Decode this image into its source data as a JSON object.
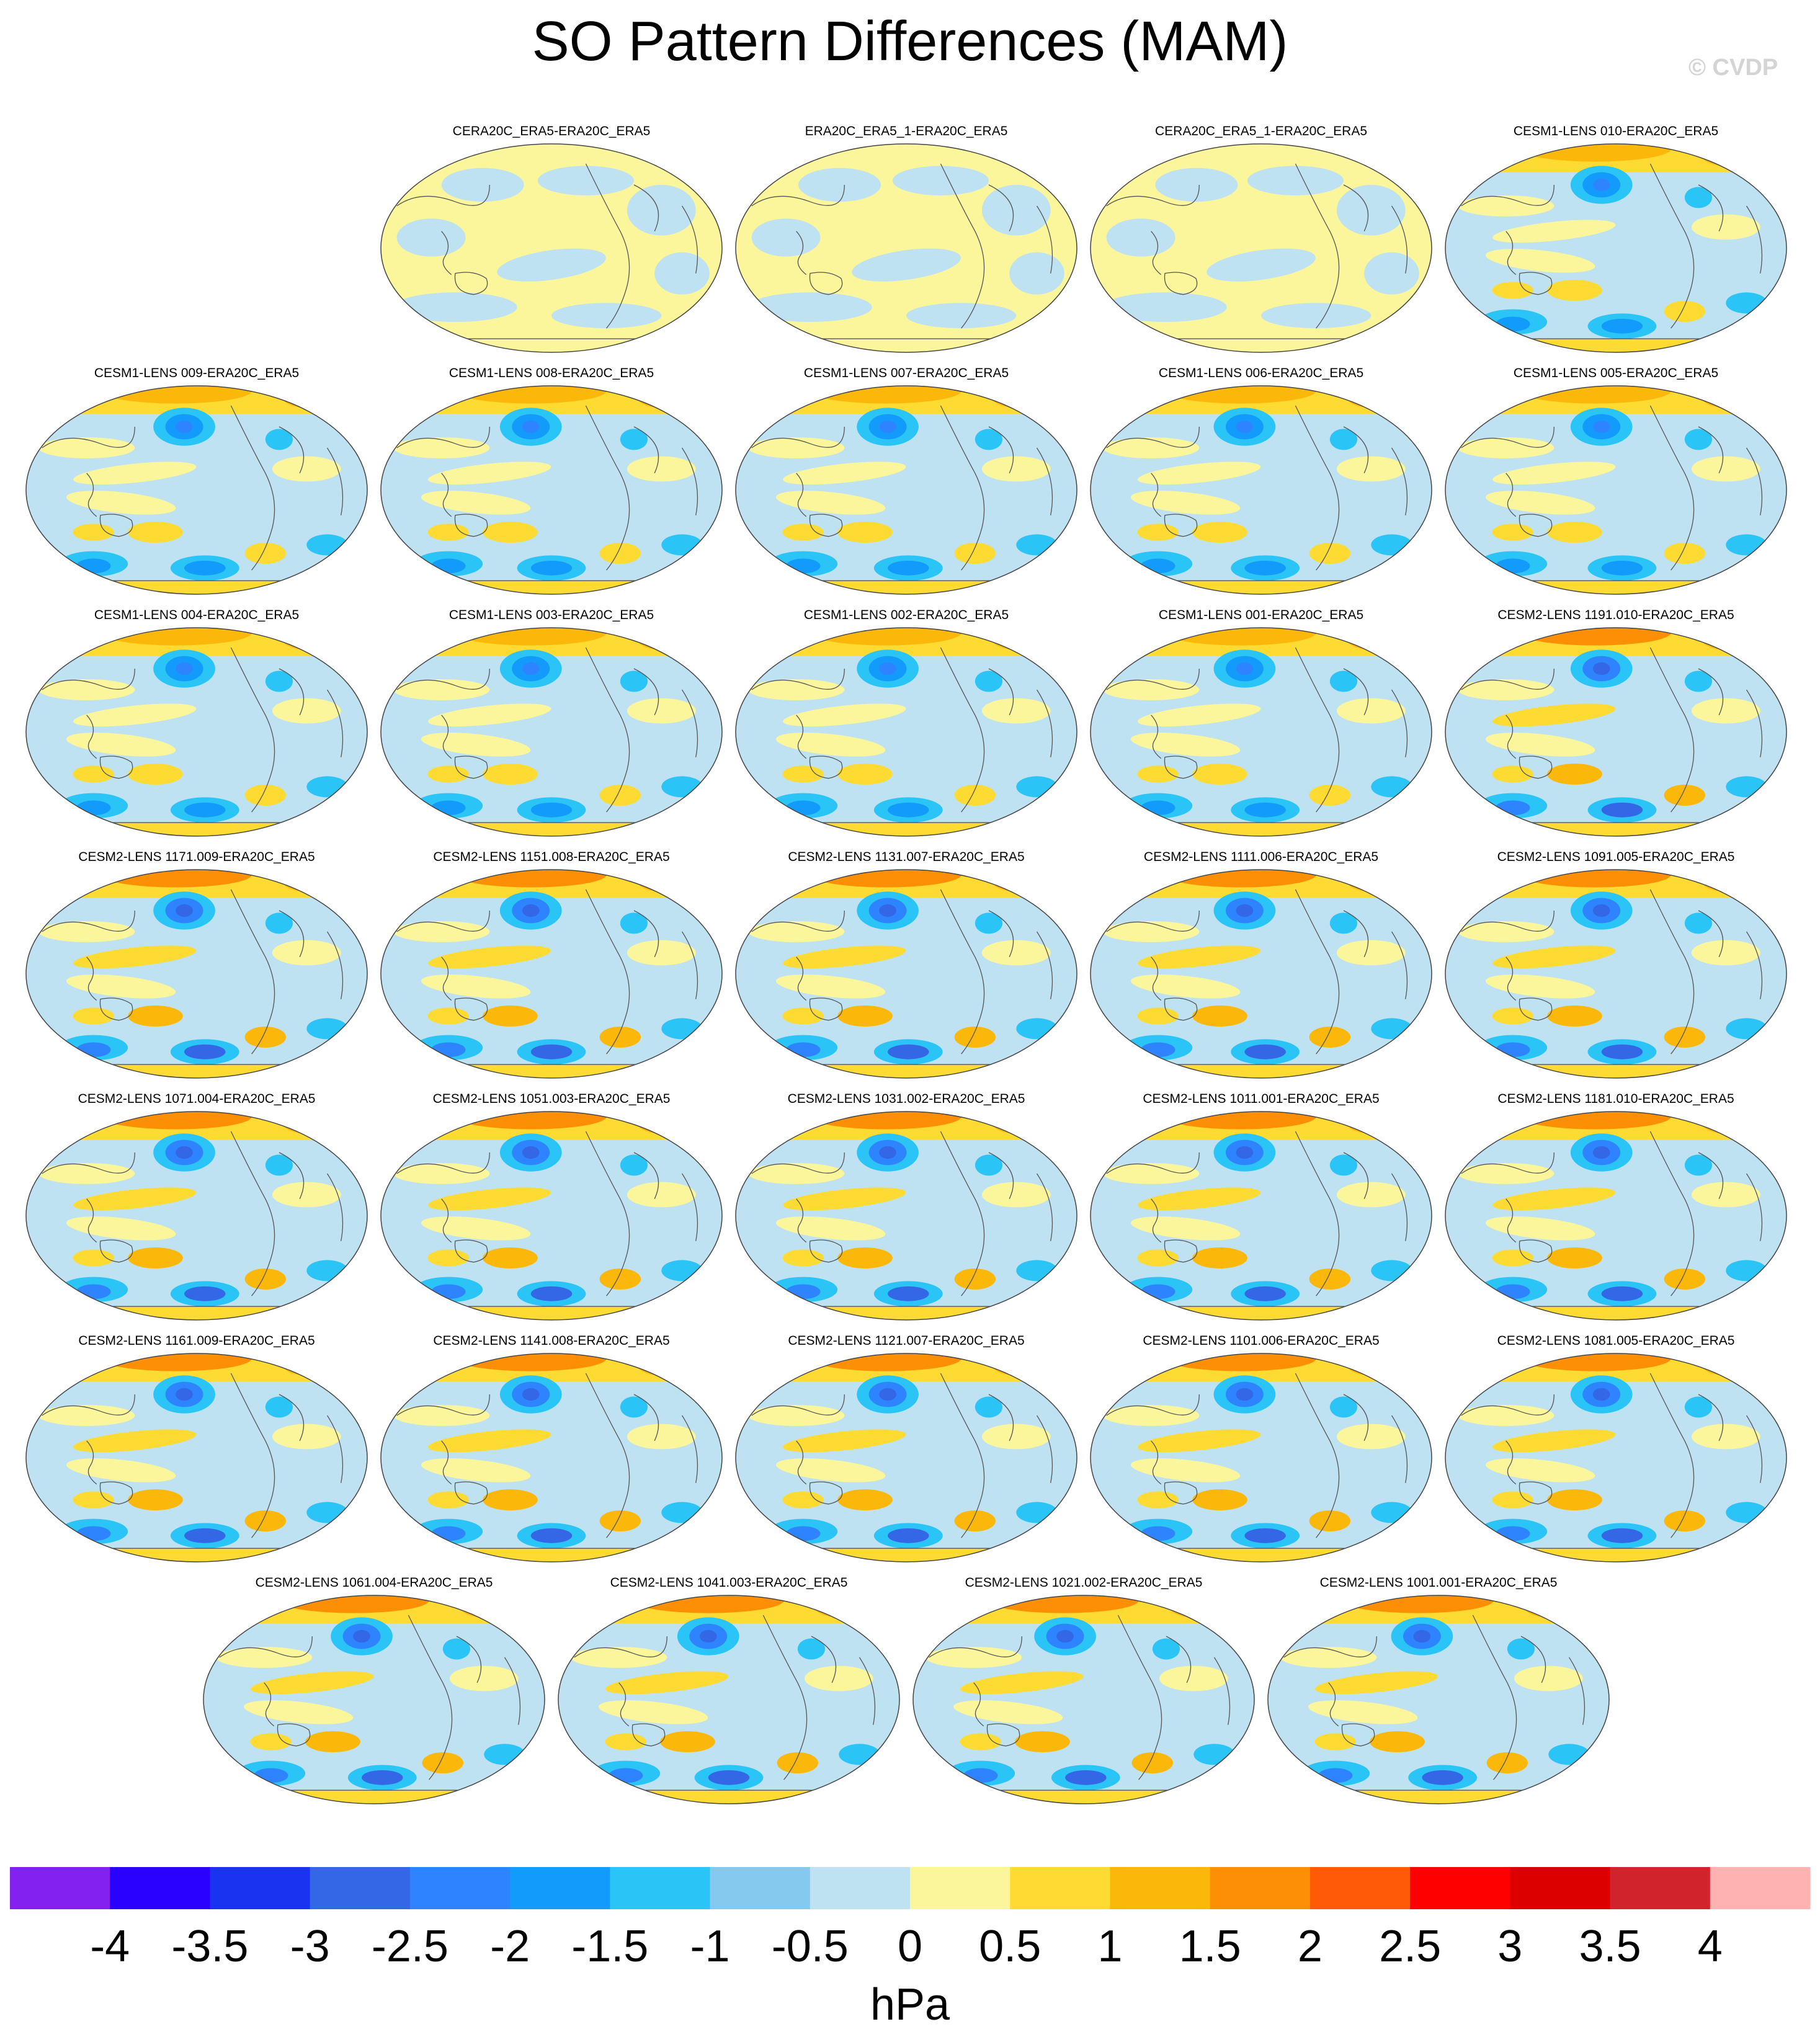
{
  "title": "SO Pattern Differences (MAM)",
  "watermark": "© CVDP",
  "chart_data": {
    "type": "heatmap",
    "title": "SO Pattern Differences (MAM)",
    "projection": "global robinson map, Pacific-centered",
    "variable_units": "hPa",
    "colorbar": {
      "label": "hPa",
      "levels": [
        "-4",
        "-3.5",
        "-3",
        "-2.5",
        "-2",
        "-1.5",
        "-1",
        "-0.5",
        "0",
        "0.5",
        "1",
        "1.5",
        "2",
        "2.5",
        "3",
        "3.5",
        "4"
      ],
      "colors": [
        "#8221f0",
        "#2a00ff",
        "#1a33f0",
        "#3367e6",
        "#2e84ff",
        "#129bfa",
        "#2bc4f7",
        "#86c9ee",
        "#bfe2f2",
        "#fbf59b",
        "#fddb32",
        "#fbb80a",
        "#fd8f06",
        "#ff5a08",
        "#ff0000",
        "#dd0000",
        "#d1232b",
        "#ffb2b2"
      ]
    },
    "panels": [
      {
        "label": "CERA20C_ERA5-ERA20C_ERA5",
        "style": "weak"
      },
      {
        "label": "ERA20C_ERA5_1-ERA20C_ERA5",
        "style": "weak"
      },
      {
        "label": "CERA20C_ERA5_1-ERA20C_ERA5",
        "style": "weak"
      },
      {
        "label": "CESM1-LENS 010-ERA20C_ERA5",
        "style": "cesm1"
      },
      {
        "label": "CESM1-LENS 009-ERA20C_ERA5",
        "style": "cesm1"
      },
      {
        "label": "CESM1-LENS 008-ERA20C_ERA5",
        "style": "cesm1"
      },
      {
        "label": "CESM1-LENS 007-ERA20C_ERA5",
        "style": "cesm1"
      },
      {
        "label": "CESM1-LENS 006-ERA20C_ERA5",
        "style": "cesm1"
      },
      {
        "label": "CESM1-LENS 005-ERA20C_ERA5",
        "style": "cesm1"
      },
      {
        "label": "CESM1-LENS 004-ERA20C_ERA5",
        "style": "cesm1"
      },
      {
        "label": "CESM1-LENS 003-ERA20C_ERA5",
        "style": "cesm1"
      },
      {
        "label": "CESM1-LENS 002-ERA20C_ERA5",
        "style": "cesm1"
      },
      {
        "label": "CESM1-LENS 001-ERA20C_ERA5",
        "style": "cesm1"
      },
      {
        "label": "CESM2-LENS 1191.010-ERA20C_ERA5",
        "style": "cesm2"
      },
      {
        "label": "CESM2-LENS 1171.009-ERA20C_ERA5",
        "style": "cesm2"
      },
      {
        "label": "CESM2-LENS 1151.008-ERA20C_ERA5",
        "style": "cesm2"
      },
      {
        "label": "CESM2-LENS 1131.007-ERA20C_ERA5",
        "style": "cesm2"
      },
      {
        "label": "CESM2-LENS 1111.006-ERA20C_ERA5",
        "style": "cesm2"
      },
      {
        "label": "CESM2-LENS 1091.005-ERA20C_ERA5",
        "style": "cesm2"
      },
      {
        "label": "CESM2-LENS 1071.004-ERA20C_ERA5",
        "style": "cesm2"
      },
      {
        "label": "CESM2-LENS 1051.003-ERA20C_ERA5",
        "style": "cesm2"
      },
      {
        "label": "CESM2-LENS 1031.002-ERA20C_ERA5",
        "style": "cesm2"
      },
      {
        "label": "CESM2-LENS 1011.001-ERA20C_ERA5",
        "style": "cesm2"
      },
      {
        "label": "CESM2-LENS 1181.010-ERA20C_ERA5",
        "style": "cesm2"
      },
      {
        "label": "CESM2-LENS 1161.009-ERA20C_ERA5",
        "style": "cesm2"
      },
      {
        "label": "CESM2-LENS 1141.008-ERA20C_ERA5",
        "style": "cesm2"
      },
      {
        "label": "CESM2-LENS 1121.007-ERA20C_ERA5",
        "style": "cesm2"
      },
      {
        "label": "CESM2-LENS 1101.006-ERA20C_ERA5",
        "style": "cesm2"
      },
      {
        "label": "CESM2-LENS 1081.005-ERA20C_ERA5",
        "style": "cesm2"
      },
      {
        "label": "CESM2-LENS 1061.004-ERA20C_ERA5",
        "style": "cesm2"
      },
      {
        "label": "CESM2-LENS 1041.003-ERA20C_ERA5",
        "style": "cesm2"
      },
      {
        "label": "CESM2-LENS 1021.002-ERA20C_ERA5",
        "style": "cesm2"
      },
      {
        "label": "CESM2-LENS 1001.001-ERA20C_ERA5",
        "style": "cesm2"
      }
    ]
  }
}
